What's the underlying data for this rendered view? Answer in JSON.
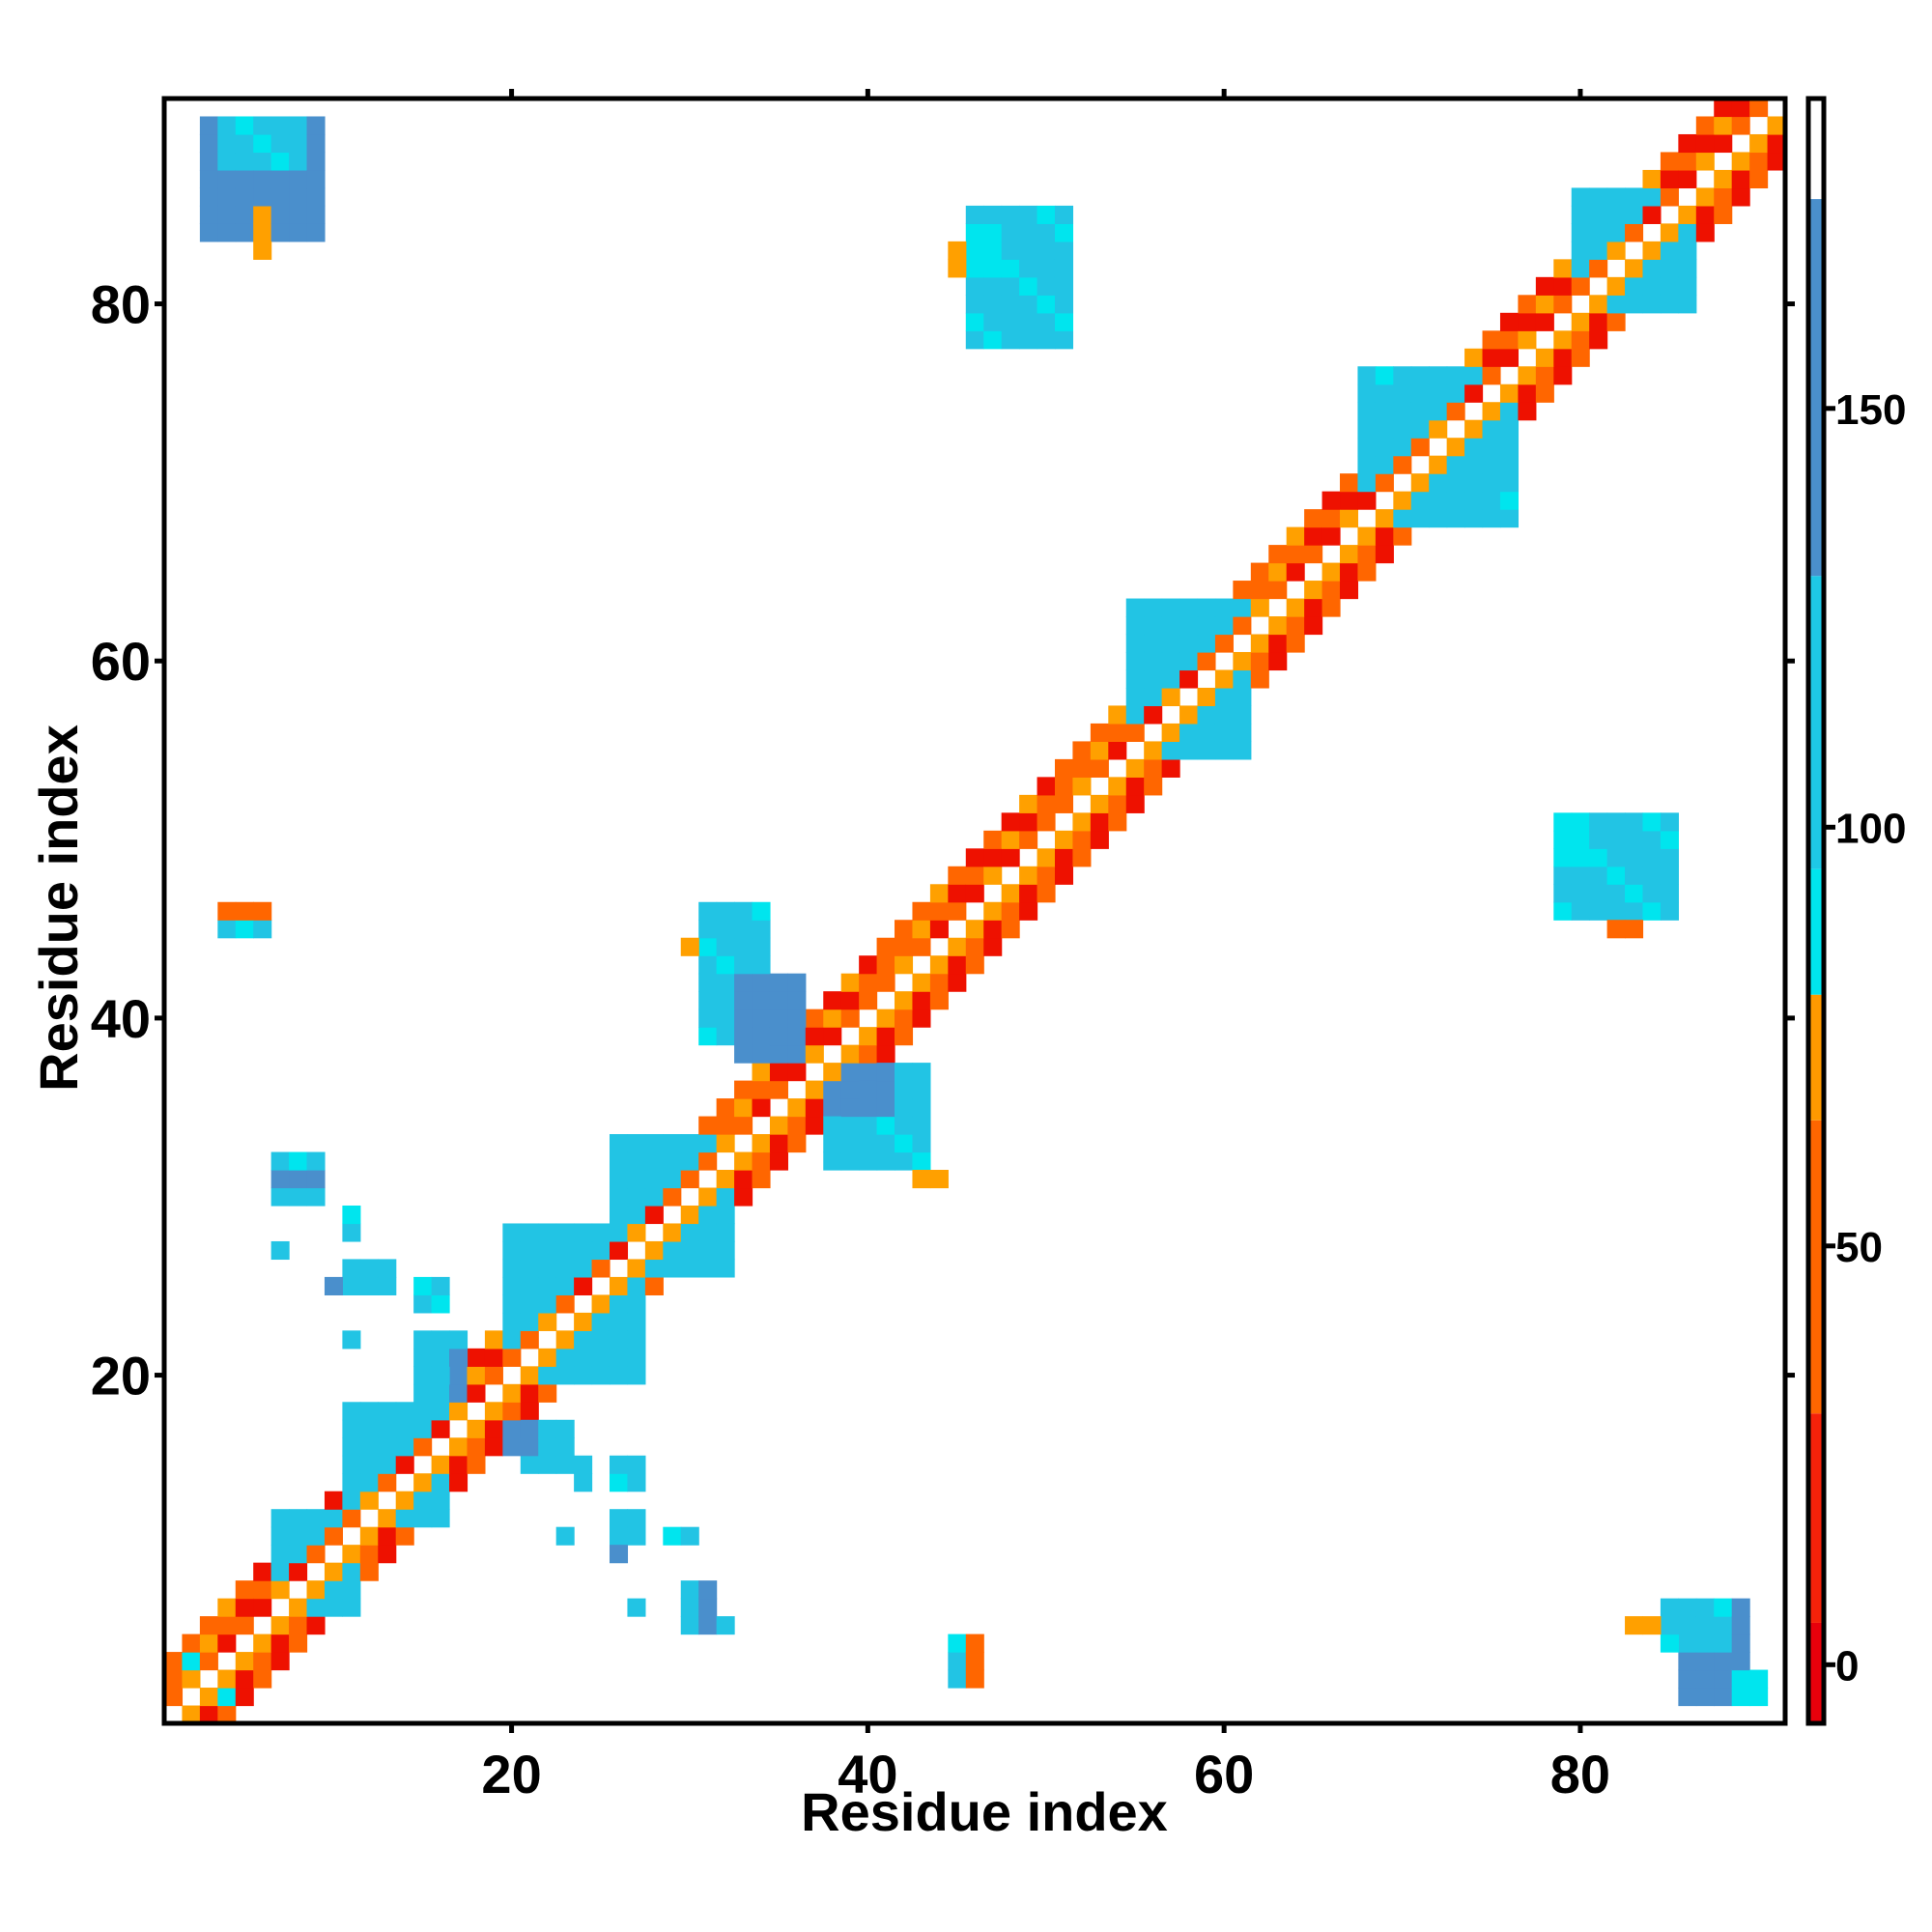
{
  "chart_data": {
    "type": "heatmap",
    "title": "",
    "xlabel": "Residue index",
    "ylabel": "Residue index",
    "xlim": [
      0.5,
      91.5
    ],
    "ylim": [
      0.5,
      91.5
    ],
    "x_ticks": [
      20,
      40,
      60,
      80
    ],
    "y_ticks": [
      20,
      40,
      60,
      80
    ],
    "colorbar": {
      "ticks": [
        0,
        50,
        100,
        150
      ],
      "range": [
        -7,
        187
      ],
      "placement": "right",
      "bands": [
        {
          "from": -7,
          "to": 5,
          "color": "#e8000b"
        },
        {
          "from": 5,
          "to": 30,
          "color": "#f5220a"
        },
        {
          "from": 30,
          "to": 65,
          "color": "#ff6600"
        },
        {
          "from": 65,
          "to": 80,
          "color": "#ff9900"
        },
        {
          "from": 80,
          "to": 95,
          "color": "#00e5ee"
        },
        {
          "from": 95,
          "to": 130,
          "color": "#1ec8e6"
        },
        {
          "from": 130,
          "to": 175,
          "color": "#4a8fcc"
        },
        {
          "from": 175,
          "to": 187,
          "color": "#ffffff"
        }
      ]
    },
    "categories_legend": [
      {
        "key": "R",
        "color": "#ee1100"
      },
      {
        "key": "O",
        "color": "#ff6600"
      },
      {
        "key": "A",
        "color": "#ffa000"
      },
      {
        "key": "C",
        "color": "#00e5ee"
      },
      {
        "key": "S",
        "color": "#22c4e4"
      },
      {
        "key": "B",
        "color": "#4a8fcc"
      }
    ],
    "diagonal_bands": {
      "description": "contacts along diagonal, offsets 2-4 residues; first index i, last index j",
      "start": 1,
      "end": 91
    },
    "blocks": [
      {
        "x": [
          3,
          9
        ],
        "y": [
          84,
          90
        ],
        "code": "B"
      },
      {
        "x": [
          4,
          8
        ],
        "y": [
          88,
          90
        ],
        "code": "S"
      },
      {
        "x": [
          6,
          6
        ],
        "y": [
          83,
          85
        ],
        "code": "A"
      },
      {
        "x": [
          46,
          51
        ],
        "y": [
          78,
          85
        ],
        "code": "S"
      },
      {
        "x": [
          46,
          47
        ],
        "y": [
          82,
          84
        ],
        "code": "C"
      },
      {
        "x": [
          45,
          45
        ],
        "y": [
          82,
          83
        ],
        "code": "A"
      },
      {
        "x": [
          79,
          85
        ],
        "y": [
          46,
          51
        ],
        "code": "S"
      },
      {
        "x": [
          79,
          80
        ],
        "y": [
          49,
          51
        ],
        "code": "C"
      },
      {
        "x": [
          82,
          83
        ],
        "y": [
          45,
          45
        ],
        "code": "O"
      },
      {
        "x": [
          86,
          89
        ],
        "y": [
          2,
          7
        ],
        "code": "B"
      },
      {
        "x": [
          85,
          88
        ],
        "y": [
          5,
          7
        ],
        "code": "S"
      },
      {
        "x": [
          83,
          84
        ],
        "y": [
          6,
          6
        ],
        "code": "A"
      },
      {
        "x": [
          89,
          90
        ],
        "y": [
          2,
          3
        ],
        "code": "C"
      },
      {
        "x": [
          45,
          45
        ],
        "y": [
          3,
          5
        ],
        "code": "S"
      },
      {
        "x": [
          46,
          46
        ],
        "y": [
          3,
          5
        ],
        "code": "O"
      },
      {
        "x": [
          4,
          6
        ],
        "y": [
          45,
          46
        ],
        "code": "S"
      },
      {
        "x": [
          4,
          6
        ],
        "y": [
          46,
          46
        ],
        "code": "O"
      },
      {
        "x": [
          31,
          34
        ],
        "y": [
          39,
          46
        ],
        "code": "S"
      },
      {
        "x": [
          33,
          36
        ],
        "y": [
          38,
          42
        ],
        "code": "B"
      },
      {
        "x": [
          30,
          30
        ],
        "y": [
          44,
          44
        ],
        "code": "A"
      },
      {
        "x": [
          38,
          43
        ],
        "y": [
          32,
          37
        ],
        "code": "S"
      },
      {
        "x": [
          38,
          41
        ],
        "y": [
          35,
          37
        ],
        "code": "B"
      },
      {
        "x": [
          43,
          44
        ],
        "y": [
          31,
          31
        ],
        "code": "A"
      },
      {
        "x": [
          7,
          9
        ],
        "y": [
          30,
          32
        ],
        "code": "S"
      },
      {
        "x": [
          7,
          9
        ],
        "y": [
          31,
          31
        ],
        "code": "B"
      },
      {
        "x": [
          11,
          11
        ],
        "y": [
          28,
          29
        ],
        "code": "S"
      },
      {
        "x": [
          7,
          7
        ],
        "y": [
          27,
          27
        ],
        "code": "S"
      },
      {
        "x": [
          11,
          13
        ],
        "y": [
          25,
          26
        ],
        "code": "S"
      },
      {
        "x": [
          10,
          10
        ],
        "y": [
          25,
          25
        ],
        "code": "B"
      },
      {
        "x": [
          15,
          16
        ],
        "y": [
          24,
          25
        ],
        "code": "S"
      },
      {
        "x": [
          11,
          11
        ],
        "y": [
          22,
          22
        ],
        "code": "S"
      },
      {
        "x": [
          15,
          17
        ],
        "y": [
          16,
          22
        ],
        "code": "S"
      },
      {
        "x": [
          17,
          17
        ],
        "y": [
          19,
          21
        ],
        "code": "B"
      },
      {
        "x": [
          21,
          23
        ],
        "y": [
          15,
          17
        ],
        "code": "S"
      },
      {
        "x": [
          20,
          21
        ],
        "y": [
          16,
          17
        ],
        "code": "B"
      },
      {
        "x": [
          26,
          27
        ],
        "y": [
          14,
          15
        ],
        "code": "S"
      },
      {
        "x": [
          24,
          24
        ],
        "y": [
          14,
          15
        ],
        "code": "S"
      },
      {
        "x": [
          23,
          23
        ],
        "y": [
          11,
          11
        ],
        "code": "S"
      },
      {
        "x": [
          26,
          27
        ],
        "y": [
          11,
          12
        ],
        "code": "S"
      },
      {
        "x": [
          26,
          26
        ],
        "y": [
          10,
          10
        ],
        "code": "B"
      },
      {
        "x": [
          29,
          30
        ],
        "y": [
          11,
          11
        ],
        "code": "S"
      },
      {
        "x": [
          27,
          27
        ],
        "y": [
          7,
          7
        ],
        "code": "S"
      },
      {
        "x": [
          30,
          31
        ],
        "y": [
          6,
          8
        ],
        "code": "S"
      },
      {
        "x": [
          31,
          31
        ],
        "y": [
          6,
          8
        ],
        "code": "B"
      },
      {
        "x": [
          32,
          32
        ],
        "y": [
          6,
          6
        ],
        "code": "S"
      },
      {
        "x": [
          7,
          11
        ],
        "y": [
          7,
          12
        ],
        "code": "S"
      },
      {
        "x": [
          11,
          16
        ],
        "y": [
          12,
          18
        ],
        "code": "S"
      },
      {
        "x": [
          20,
          27
        ],
        "y": [
          20,
          28
        ],
        "code": "S"
      },
      {
        "x": [
          26,
          32
        ],
        "y": [
          26,
          33
        ],
        "code": "S"
      },
      {
        "x": [
          2,
          4
        ],
        "y": [
          2,
          4
        ],
        "code": "C"
      },
      {
        "x": [
          55,
          61
        ],
        "y": [
          55,
          63
        ],
        "code": "S"
      },
      {
        "x": [
          68,
          76
        ],
        "y": [
          68,
          76
        ],
        "code": "S"
      },
      {
        "x": [
          80,
          86
        ],
        "y": [
          80,
          86
        ],
        "code": "S"
      }
    ]
  }
}
